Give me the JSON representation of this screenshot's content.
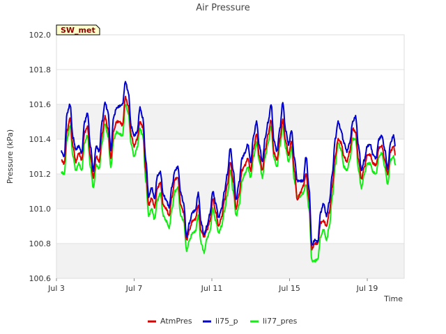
{
  "chart_data": {
    "type": "line",
    "title": "Air Pressure",
    "xlabel": "Time",
    "ylabel": "Pressure (kPa)",
    "badge": "SW_met",
    "ylim": [
      100.6,
      102.0
    ],
    "xlim": [
      3,
      20.9
    ],
    "y_ticks": [
      100.6,
      100.8,
      101.0,
      101.2,
      101.4,
      101.6,
      101.8,
      102.0
    ],
    "y_tick_labels": [
      "100.6",
      "100.8",
      "101.0",
      "101.2",
      "101.4",
      "101.6",
      "101.8",
      "102.0"
    ],
    "x_ticks": [
      3,
      7,
      11,
      15,
      19
    ],
    "x_tick_labels": [
      "Jul 3",
      "Jul 7",
      "Jul 11",
      "Jul 15",
      "Jul 19"
    ],
    "grid": true,
    "legend_position": "bottom",
    "series": [
      {
        "name": "AtmPres",
        "color": "#dd0000",
        "x": [
          3.25,
          3.4,
          3.55,
          3.7,
          3.85,
          4.0,
          4.15,
          4.3,
          4.45,
          4.6,
          4.75,
          4.9,
          5.05,
          5.2,
          5.35,
          5.5,
          5.65,
          5.8,
          5.95,
          6.1,
          6.25,
          6.4,
          6.55,
          6.7,
          6.85,
          7.0,
          7.15,
          7.3,
          7.45,
          7.6,
          7.75,
          7.9,
          8.05,
          8.2,
          8.35,
          8.5,
          8.65,
          8.8,
          8.95,
          9.1,
          9.25,
          9.4,
          9.55,
          9.7,
          9.85,
          10.0,
          10.15,
          10.3,
          10.45,
          10.6,
          10.75,
          10.9,
          11.05,
          11.2,
          11.35,
          11.5,
          11.65,
          11.8,
          11.95,
          12.1,
          12.25,
          12.4,
          12.55,
          12.7,
          12.85,
          13.0,
          13.15,
          13.3,
          13.45,
          13.6,
          13.75,
          13.9,
          14.05,
          14.2,
          14.35,
          14.5,
          14.65,
          14.8,
          14.95,
          15.1,
          15.25,
          15.4,
          15.55,
          15.7,
          15.85,
          16.0,
          16.15,
          16.3,
          16.45,
          16.6,
          16.75,
          16.9,
          17.05,
          17.2,
          17.35,
          17.5,
          17.65,
          17.8,
          17.95,
          18.1,
          18.25,
          18.4,
          18.55,
          18.7,
          18.85,
          19.0,
          19.15,
          19.3,
          19.45,
          19.6,
          19.75,
          19.9,
          20.05,
          20.2,
          20.35,
          20.45
        ],
        "y": [
          101.28,
          101.26,
          101.45,
          101.52,
          101.36,
          101.27,
          101.32,
          101.28,
          101.44,
          101.47,
          101.3,
          101.18,
          101.3,
          101.27,
          101.43,
          101.53,
          101.46,
          101.29,
          101.45,
          101.5,
          101.5,
          101.48,
          101.64,
          101.59,
          101.42,
          101.36,
          101.4,
          101.5,
          101.47,
          101.22,
          101.02,
          101.06,
          101.01,
          101.12,
          101.15,
          101.02,
          101.0,
          100.96,
          101.07,
          101.17,
          101.18,
          101.02,
          100.98,
          100.82,
          100.88,
          100.93,
          100.94,
          101.02,
          100.87,
          100.84,
          100.88,
          100.93,
          101.06,
          100.98,
          100.9,
          100.95,
          101.05,
          101.14,
          101.27,
          101.16,
          101.0,
          101.08,
          101.22,
          101.25,
          101.29,
          101.22,
          101.35,
          101.43,
          101.3,
          101.22,
          101.34,
          101.43,
          101.51,
          101.32,
          101.28,
          101.4,
          101.51,
          101.39,
          101.31,
          101.39,
          101.22,
          101.05,
          101.09,
          101.13,
          101.2,
          101.06,
          100.77,
          100.8,
          100.8,
          100.92,
          100.93,
          100.9,
          100.98,
          101.13,
          101.3,
          101.4,
          101.38,
          101.3,
          101.27,
          101.33,
          101.46,
          101.44,
          101.28,
          101.17,
          101.24,
          101.31,
          101.31,
          101.26,
          101.25,
          101.35,
          101.36,
          101.28,
          101.2,
          101.33,
          101.36,
          101.31
        ],
        "smooth": true
      },
      {
        "name": "li75_p",
        "color": "#0000cc",
        "x": [
          3.25,
          3.4,
          3.55,
          3.7,
          3.85,
          4.0,
          4.15,
          4.3,
          4.45,
          4.6,
          4.75,
          4.9,
          5.05,
          5.2,
          5.35,
          5.5,
          5.65,
          5.8,
          5.95,
          6.1,
          6.25,
          6.4,
          6.55,
          6.7,
          6.85,
          7.0,
          7.15,
          7.3,
          7.45,
          7.6,
          7.75,
          7.9,
          8.05,
          8.2,
          8.35,
          8.5,
          8.65,
          8.8,
          8.95,
          9.1,
          9.25,
          9.4,
          9.55,
          9.7,
          9.85,
          10.0,
          10.15,
          10.3,
          10.45,
          10.6,
          10.75,
          10.9,
          11.05,
          11.2,
          11.35,
          11.5,
          11.65,
          11.8,
          11.95,
          12.1,
          12.25,
          12.4,
          12.55,
          12.7,
          12.85,
          13.0,
          13.15,
          13.3,
          13.45,
          13.6,
          13.75,
          13.9,
          14.05,
          14.2,
          14.35,
          14.5,
          14.65,
          14.8,
          14.95,
          15.1,
          15.25,
          15.4,
          15.55,
          15.7,
          15.85,
          16.0,
          16.15,
          16.3,
          16.45,
          16.6,
          16.75,
          16.9,
          17.05,
          17.2,
          17.35,
          17.5,
          17.65,
          17.8,
          17.95,
          18.1,
          18.25,
          18.4,
          18.55,
          18.7,
          18.85,
          19.0,
          19.15,
          19.3,
          19.45,
          19.6,
          19.75,
          19.9,
          20.05,
          20.2,
          20.35,
          20.45
        ],
        "y": [
          101.33,
          101.3,
          101.55,
          101.6,
          101.41,
          101.34,
          101.36,
          101.32,
          101.5,
          101.55,
          101.36,
          101.22,
          101.36,
          101.33,
          101.5,
          101.61,
          101.56,
          101.34,
          101.53,
          101.58,
          101.59,
          101.6,
          101.73,
          101.67,
          101.47,
          101.42,
          101.44,
          101.58,
          101.52,
          101.28,
          101.07,
          101.12,
          101.06,
          101.19,
          101.21,
          101.08,
          101.05,
          101.01,
          101.13,
          101.22,
          101.24,
          101.09,
          101.03,
          100.84,
          100.92,
          100.98,
          100.99,
          101.09,
          100.92,
          100.85,
          100.9,
          100.97,
          101.1,
          101.03,
          100.95,
          101.0,
          101.1,
          101.2,
          101.35,
          101.22,
          101.05,
          101.15,
          101.29,
          101.32,
          101.37,
          101.27,
          101.42,
          101.5,
          101.36,
          101.27,
          101.41,
          101.5,
          101.6,
          101.39,
          101.33,
          101.46,
          101.61,
          101.45,
          101.37,
          101.45,
          101.29,
          101.16,
          101.16,
          101.16,
          101.3,
          101.12,
          100.79,
          100.82,
          100.81,
          100.98,
          101.03,
          100.96,
          101.04,
          101.2,
          101.4,
          101.5,
          101.45,
          101.38,
          101.33,
          101.38,
          101.5,
          101.53,
          101.36,
          101.22,
          101.28,
          101.36,
          101.37,
          101.31,
          101.29,
          101.4,
          101.42,
          101.34,
          101.23,
          101.38,
          101.42,
          101.36
        ],
        "smooth": true
      },
      {
        "name": "li77_pres",
        "color": "#11ee11",
        "x": [
          3.25,
          3.4,
          3.55,
          3.7,
          3.85,
          4.0,
          4.15,
          4.3,
          4.45,
          4.6,
          4.75,
          4.9,
          5.05,
          5.2,
          5.35,
          5.5,
          5.65,
          5.8,
          5.95,
          6.1,
          6.25,
          6.4,
          6.55,
          6.7,
          6.85,
          7.0,
          7.15,
          7.3,
          7.45,
          7.6,
          7.75,
          7.9,
          8.05,
          8.2,
          8.35,
          8.5,
          8.65,
          8.8,
          8.95,
          9.1,
          9.25,
          9.4,
          9.55,
          9.7,
          9.85,
          10.0,
          10.15,
          10.3,
          10.45,
          10.6,
          10.75,
          10.9,
          11.05,
          11.2,
          11.35,
          11.5,
          11.65,
          11.8,
          11.95,
          12.1,
          12.25,
          12.4,
          12.55,
          12.7,
          12.85,
          13.0,
          13.15,
          13.3,
          13.45,
          13.6,
          13.75,
          13.9,
          14.05,
          14.2,
          14.35,
          14.5,
          14.65,
          14.8,
          14.95,
          15.1,
          15.25,
          15.4,
          15.55,
          15.7,
          15.85,
          16.0,
          16.15,
          16.3,
          16.45,
          16.6,
          16.75,
          16.9,
          17.05,
          17.2,
          17.35,
          17.5,
          17.65,
          17.8,
          17.95,
          18.1,
          18.25,
          18.4,
          18.55,
          18.7,
          18.85,
          19.0,
          19.15,
          19.3,
          19.45,
          19.6,
          19.75,
          19.9,
          20.05,
          20.2,
          20.35,
          20.45
        ],
        "y": [
          101.21,
          101.2,
          101.4,
          101.48,
          101.3,
          101.22,
          101.26,
          101.22,
          101.38,
          101.42,
          101.24,
          101.12,
          101.25,
          101.23,
          101.38,
          101.49,
          101.42,
          101.24,
          101.4,
          101.44,
          101.43,
          101.42,
          101.6,
          101.55,
          101.37,
          101.3,
          101.35,
          101.46,
          101.42,
          101.16,
          100.96,
          101.0,
          100.94,
          101.05,
          101.09,
          100.96,
          100.93,
          100.89,
          101.0,
          101.1,
          101.12,
          100.96,
          100.93,
          100.76,
          100.82,
          100.86,
          100.87,
          100.96,
          100.8,
          100.75,
          100.83,
          100.87,
          101.0,
          100.93,
          100.86,
          100.9,
          100.99,
          101.08,
          101.22,
          101.1,
          100.96,
          101.02,
          101.16,
          101.2,
          101.24,
          101.18,
          101.3,
          101.38,
          101.27,
          101.18,
          101.3,
          101.38,
          101.47,
          101.29,
          101.24,
          101.36,
          101.48,
          101.35,
          101.27,
          101.35,
          101.16,
          101.07,
          101.07,
          101.09,
          101.14,
          101.0,
          100.7,
          100.7,
          100.71,
          100.84,
          100.88,
          100.82,
          100.9,
          101.07,
          101.25,
          101.38,
          101.34,
          101.24,
          101.22,
          101.28,
          101.4,
          101.4,
          101.22,
          101.12,
          101.2,
          101.26,
          101.26,
          101.21,
          101.2,
          101.3,
          101.32,
          101.24,
          101.14,
          101.28,
          101.3,
          101.25
        ],
        "smooth": true
      }
    ]
  }
}
